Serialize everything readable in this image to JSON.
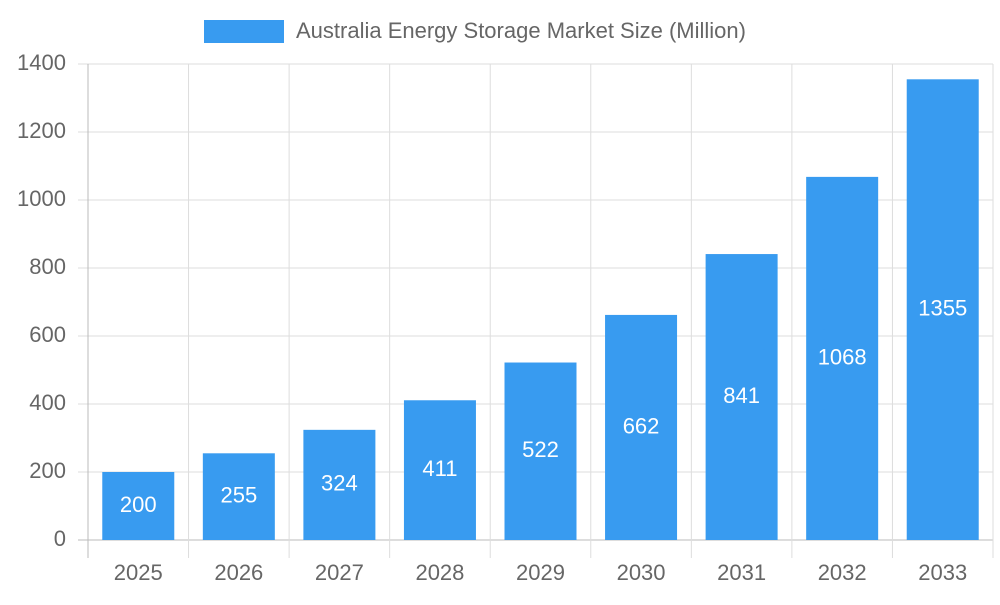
{
  "chart_data": {
    "type": "bar",
    "categories": [
      "2025",
      "2026",
      "2027",
      "2028",
      "2029",
      "2030",
      "2031",
      "2032",
      "2033"
    ],
    "series": [
      {
        "name": "Australia Energy Storage Market Size (Million)",
        "color": "#389bf0",
        "values": [
          200,
          255,
          324,
          411,
          522,
          662,
          841,
          1068,
          1355
        ]
      }
    ],
    "ylim": [
      0,
      1400
    ],
    "yticks": [
      0,
      200,
      400,
      600,
      800,
      1000,
      1200,
      1400
    ],
    "grid": true,
    "legend": "top",
    "data_labels": true
  }
}
